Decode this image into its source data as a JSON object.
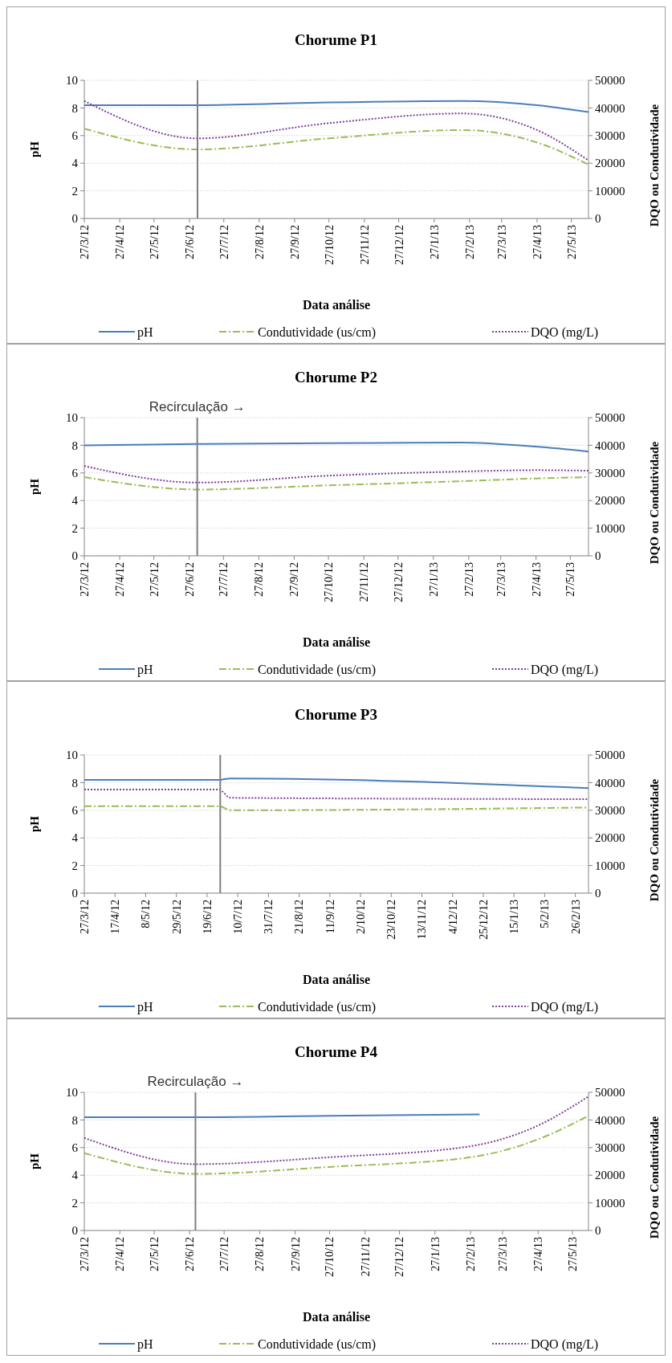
{
  "chart_data": [
    {
      "type": "line",
      "title": "Chorume P1",
      "xlabel": "Data análise",
      "ylabel": "pH",
      "y2label": "DQO ou Condutividade",
      "xlim": [
        "2012-03-27",
        "2013-06-11"
      ],
      "xticks": [
        {
          "value": "2012-03-27",
          "label": "27/3/12"
        },
        {
          "value": "2012-04-27",
          "label": "27/4/12"
        },
        {
          "value": "2012-05-27",
          "label": "27/5/12"
        },
        {
          "value": "2012-06-27",
          "label": "27/6/12"
        },
        {
          "value": "2012-07-27",
          "label": "27/7/12"
        },
        {
          "value": "2012-08-27",
          "label": "27/8/12"
        },
        {
          "value": "2012-09-27",
          "label": "27/9/12"
        },
        {
          "value": "2012-10-27",
          "label": "27/10/12"
        },
        {
          "value": "2012-11-27",
          "label": "27/11/12"
        },
        {
          "value": "2012-12-27",
          "label": "27/12/12"
        },
        {
          "value": "2013-01-27",
          "label": "27/1/13"
        },
        {
          "value": "2013-02-27",
          "label": "27/2/13"
        },
        {
          "value": "2013-03-27",
          "label": "27/3/13"
        },
        {
          "value": "2013-04-27",
          "label": "27/4/13"
        },
        {
          "value": "2013-05-27",
          "label": "27/5/13"
        }
      ],
      "ylim": [
        0,
        10
      ],
      "yticks": [
        0,
        2,
        4,
        6,
        8,
        10
      ],
      "y2lim": [
        0,
        50000
      ],
      "y2ticks": [
        0,
        10000,
        20000,
        30000,
        40000,
        50000
      ],
      "grid": "y",
      "legend": "bottom",
      "ref_lines": [
        {
          "axis": "x",
          "value": "2012-07-04",
          "color": "#7f7f7f"
        }
      ],
      "series": [
        {
          "name": "pH",
          "color": "#4a7ebb",
          "line_style": "solid",
          "x": [
            "2012-03-27",
            "2012-07-04",
            "2012-10-27",
            "2013-02-20",
            "2013-04-27",
            "2013-06-11"
          ],
          "values": [
            8.2,
            8.2,
            8.4,
            8.5,
            8.2,
            7.7
          ]
        },
        {
          "name": "Condutividade (us/cm)",
          "color": "#9bbb59",
          "line_style": "dashdot",
          "axis": "y2",
          "x": [
            "2012-03-27",
            "2012-07-04",
            "2012-10-27",
            "2013-02-20",
            "2013-04-27",
            "2013-06-11"
          ],
          "values": [
            32500,
            25000,
            29000,
            32000,
            27500,
            19500
          ]
        },
        {
          "name": "DQO (mg/L)",
          "color": "#7f3f98",
          "line_style": "dotted",
          "axis": "y2",
          "x": [
            "2012-03-27",
            "2012-07-04",
            "2012-10-27",
            "2013-02-20",
            "2013-04-27",
            "2013-06-11"
          ],
          "values": [
            42500,
            29000,
            34500,
            38000,
            32000,
            21000
          ]
        }
      ]
    },
    {
      "type": "line",
      "title": "Chorume P2",
      "xlabel": "Data análise",
      "ylabel": "pH",
      "y2label": "DQO ou Condutividade",
      "xlim": [
        "2012-03-27",
        "2013-06-12"
      ],
      "xticks": [
        {
          "value": "2012-03-27",
          "label": "27/3/12"
        },
        {
          "value": "2012-04-27",
          "label": "27/4/12"
        },
        {
          "value": "2012-05-27",
          "label": "27/5/12"
        },
        {
          "value": "2012-06-27",
          "label": "27/6/12"
        },
        {
          "value": "2012-07-27",
          "label": "27/7/12"
        },
        {
          "value": "2012-08-27",
          "label": "27/8/12"
        },
        {
          "value": "2012-09-27",
          "label": "27/9/12"
        },
        {
          "value": "2012-10-27",
          "label": "27/10/12"
        },
        {
          "value": "2012-11-27",
          "label": "27/11/12"
        },
        {
          "value": "2012-12-27",
          "label": "27/12/12"
        },
        {
          "value": "2013-01-27",
          "label": "27/1/13"
        },
        {
          "value": "2013-02-27",
          "label": "27/2/13"
        },
        {
          "value": "2013-03-27",
          "label": "27/3/13"
        },
        {
          "value": "2013-04-27",
          "label": "27/4/13"
        },
        {
          "value": "2013-05-27",
          "label": "27/5/13"
        }
      ],
      "ylim": [
        0,
        10
      ],
      "yticks": [
        0,
        2,
        4,
        6,
        8,
        10
      ],
      "y2lim": [
        0,
        50000
      ],
      "y2ticks": [
        0,
        10000,
        20000,
        30000,
        40000,
        50000
      ],
      "grid": "y",
      "legend": "bottom",
      "ref_lines": [
        {
          "axis": "x",
          "value": "2012-07-04",
          "label": "Recirculação →",
          "color": "#7f7f7f"
        }
      ],
      "series": [
        {
          "name": "pH",
          "color": "#4a7ebb",
          "line_style": "solid",
          "x": [
            "2012-03-27",
            "2012-07-04",
            "2012-10-27",
            "2013-02-20",
            "2013-04-27",
            "2013-06-12"
          ],
          "values": [
            8.0,
            8.1,
            8.15,
            8.2,
            7.9,
            7.55
          ]
        },
        {
          "name": "Condutividade (us/cm)",
          "color": "#9bbb59",
          "line_style": "dashdot",
          "axis": "y2",
          "x": [
            "2012-03-27",
            "2012-07-04",
            "2012-10-27",
            "2013-02-20",
            "2013-04-27",
            "2013-06-12"
          ],
          "values": [
            28500,
            24000,
            25500,
            27000,
            28000,
            28500
          ]
        },
        {
          "name": "DQO (mg/L)",
          "color": "#7f3f98",
          "line_style": "dotted",
          "axis": "y2",
          "x": [
            "2012-03-27",
            "2012-07-04",
            "2012-10-27",
            "2013-02-20",
            "2013-04-27",
            "2013-06-12"
          ],
          "values": [
            32500,
            26500,
            29000,
            30500,
            31000,
            30800
          ]
        }
      ]
    },
    {
      "type": "line",
      "title": "Chorume P3",
      "xlabel": "Data análise",
      "ylabel": "pH",
      "y2label": "DQO ou Condutividade",
      "xlim": [
        "2012-03-27",
        "2013-03-07"
      ],
      "xticks": [
        {
          "value": "2012-03-27",
          "label": "27/3/12"
        },
        {
          "value": "2012-04-17",
          "label": "17/4/12"
        },
        {
          "value": "2012-05-08",
          "label": "8/5/12"
        },
        {
          "value": "2012-05-29",
          "label": "29/5/12"
        },
        {
          "value": "2012-06-19",
          "label": "19/6/12"
        },
        {
          "value": "2012-07-10",
          "label": "10/7/12"
        },
        {
          "value": "2012-07-31",
          "label": "31/7/12"
        },
        {
          "value": "2012-08-21",
          "label": "21/8/12"
        },
        {
          "value": "2012-09-11",
          "label": "11/9/12"
        },
        {
          "value": "2012-10-02",
          "label": "2/10/12"
        },
        {
          "value": "2012-10-23",
          "label": "23/10/12"
        },
        {
          "value": "2012-11-13",
          "label": "13/11/12"
        },
        {
          "value": "2012-12-04",
          "label": "4/12/12"
        },
        {
          "value": "2012-12-25",
          "label": "25/12/12"
        },
        {
          "value": "2013-01-15",
          "label": "15/1/13"
        },
        {
          "value": "2013-02-05",
          "label": "5/2/13"
        },
        {
          "value": "2013-02-26",
          "label": "26/2/13"
        }
      ],
      "ylim": [
        0,
        10
      ],
      "yticks": [
        0,
        2,
        4,
        6,
        8,
        10
      ],
      "y2lim": [
        0,
        50000
      ],
      "y2ticks": [
        0,
        10000,
        20000,
        30000,
        40000,
        50000
      ],
      "grid": "y",
      "legend": "bottom",
      "ref_lines": [
        {
          "axis": "x",
          "value": "2012-06-28",
          "color": "#7f7f7f"
        }
      ],
      "series": [
        {
          "name": "pH",
          "color": "#4a7ebb",
          "line_style": "solid",
          "x": [
            "2012-03-27",
            "2012-06-27",
            "2012-07-05",
            "2013-03-07"
          ],
          "values": [
            8.2,
            8.2,
            8.3,
            7.6
          ]
        },
        {
          "name": "Condutividade (us/cm)",
          "color": "#9bbb59",
          "line_style": "dashdot",
          "axis": "y2",
          "x": [
            "2012-03-27",
            "2012-06-27",
            "2012-07-05",
            "2013-03-07"
          ],
          "values": [
            31500,
            31500,
            30000,
            31000
          ]
        },
        {
          "name": "DQO (mg/L)",
          "color": "#7f3f98",
          "line_style": "dotted",
          "axis": "y2",
          "x": [
            "2012-03-27",
            "2012-06-27",
            "2012-07-05",
            "2013-03-07"
          ],
          "values": [
            37500,
            37500,
            34500,
            34000
          ]
        }
      ]
    },
    {
      "type": "line",
      "title": "Chorume P4",
      "xlabel": "Data análise",
      "ylabel": "pH",
      "y2label": "DQO ou Condutividade",
      "xlim": [
        "2012-03-27",
        "2013-06-10"
      ],
      "xticks": [
        {
          "value": "2012-03-27",
          "label": "27/3/12"
        },
        {
          "value": "2012-04-27",
          "label": "27/4/12"
        },
        {
          "value": "2012-05-27",
          "label": "27/5/12"
        },
        {
          "value": "2012-06-27",
          "label": "27/6/12"
        },
        {
          "value": "2012-07-27",
          "label": "27/7/12"
        },
        {
          "value": "2012-08-27",
          "label": "27/8/12"
        },
        {
          "value": "2012-09-27",
          "label": "27/9/12"
        },
        {
          "value": "2012-10-27",
          "label": "27/10/12"
        },
        {
          "value": "2012-11-27",
          "label": "27/11/12"
        },
        {
          "value": "2012-12-27",
          "label": "27/12/12"
        },
        {
          "value": "2013-01-27",
          "label": "27/1/13"
        },
        {
          "value": "2013-02-27",
          "label": "27/2/13"
        },
        {
          "value": "2013-03-27",
          "label": "27/3/13"
        },
        {
          "value": "2013-04-27",
          "label": "27/4/13"
        },
        {
          "value": "2013-05-27",
          "label": "27/5/13"
        }
      ],
      "ylim": [
        0,
        10
      ],
      "yticks": [
        0,
        2,
        4,
        6,
        8,
        10
      ],
      "y2lim": [
        0,
        50000
      ],
      "y2ticks": [
        0,
        10000,
        20000,
        30000,
        40000,
        50000
      ],
      "grid": "y",
      "legend": "bottom",
      "ref_lines": [
        {
          "axis": "x",
          "value": "2012-07-02",
          "label": "Recirculação →",
          "color": "#7f7f7f"
        }
      ],
      "series": [
        {
          "name": "pH",
          "color": "#4a7ebb",
          "line_style": "solid",
          "x": [
            "2012-03-27",
            "2012-07-02",
            "2012-10-27",
            "2013-03-07"
          ],
          "values": [
            8.2,
            8.2,
            8.3,
            8.4
          ]
        },
        {
          "name": "Condutividade (us/cm)",
          "color": "#9bbb59",
          "line_style": "dashdot",
          "axis": "y2",
          "x": [
            "2012-03-27",
            "2012-07-02",
            "2012-10-27",
            "2013-02-27",
            "2013-04-27",
            "2013-06-10"
          ],
          "values": [
            28000,
            20500,
            23000,
            26500,
            33000,
            41500
          ]
        },
        {
          "name": "DQO (mg/L)",
          "color": "#7f3f98",
          "line_style": "dotted",
          "axis": "y2",
          "x": [
            "2012-03-27",
            "2012-07-02",
            "2012-10-27",
            "2013-02-27",
            "2013-04-27",
            "2013-06-10"
          ],
          "values": [
            33500,
            24000,
            26500,
            30500,
            38000,
            48500
          ]
        }
      ]
    }
  ]
}
